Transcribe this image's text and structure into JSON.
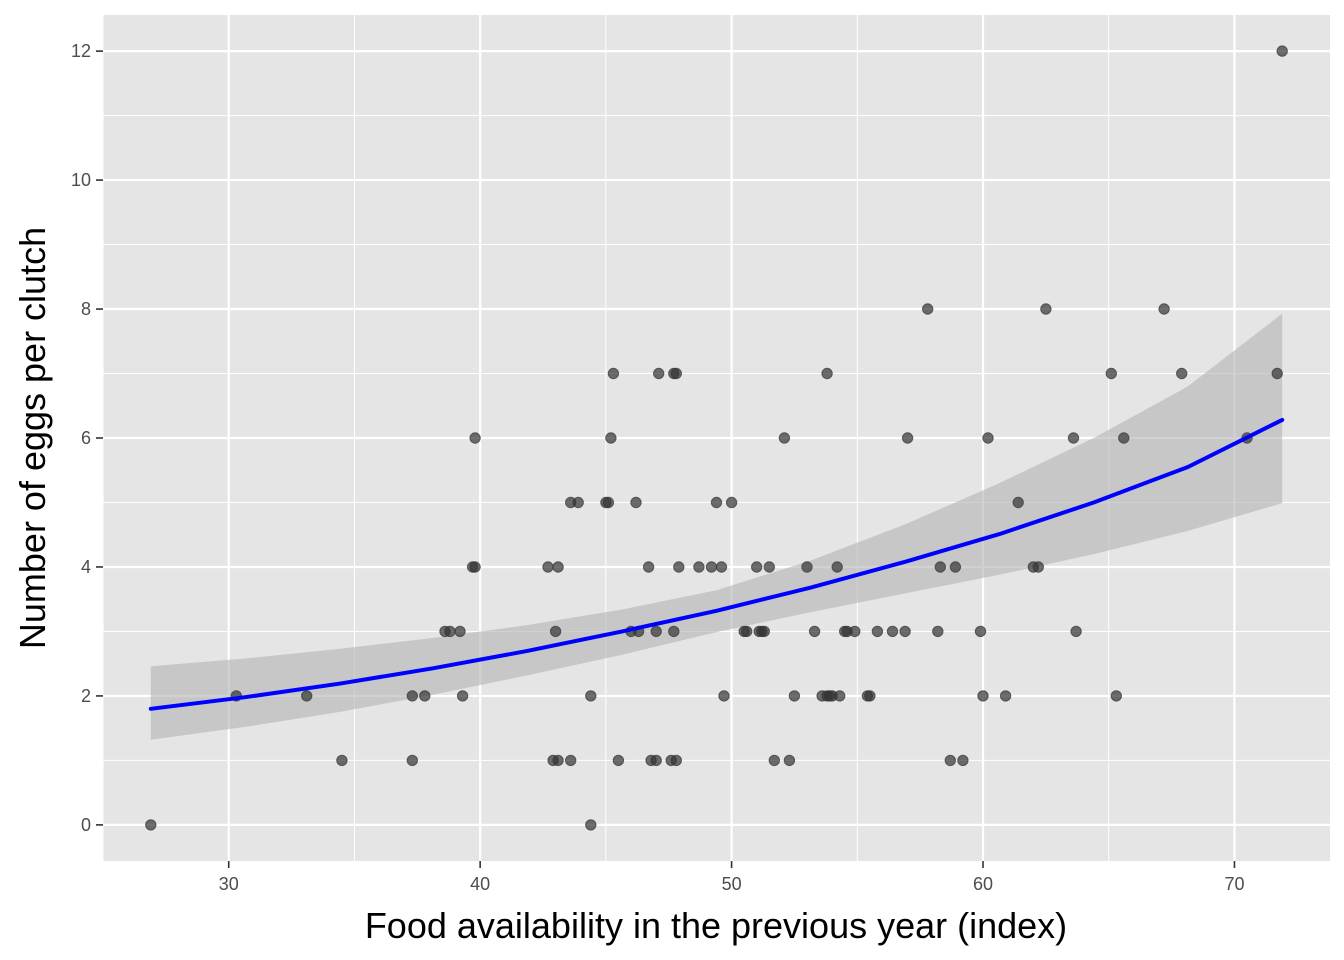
{
  "chart_data": {
    "type": "scatter",
    "title": "",
    "xlabel": "Food availability in the previous year (index)",
    "ylabel": "Number of eggs per clutch",
    "xlim": [
      25,
      73.8
    ],
    "ylim": [
      -0.56,
      12.56
    ],
    "x_ticks": [
      30,
      40,
      50,
      60,
      70
    ],
    "y_ticks": [
      0,
      2,
      4,
      6,
      8,
      10,
      12
    ],
    "x_tick_labels": [
      "30",
      "40",
      "50",
      "60",
      "70"
    ],
    "y_tick_labels": [
      "0",
      "2",
      "4",
      "6",
      "8",
      "10",
      "12"
    ],
    "grid": true,
    "legend": "none",
    "colors": {
      "panel": "#e5e5e5",
      "grid": "#ffffff",
      "points": "#333333",
      "fit_line": "#0000ff",
      "ribbon": "#b3b3b3"
    },
    "points": [
      [
        26.9,
        0
      ],
      [
        30.3,
        2
      ],
      [
        33.1,
        2
      ],
      [
        34.5,
        1
      ],
      [
        37.3,
        1
      ],
      [
        37.3,
        2
      ],
      [
        37.8,
        2
      ],
      [
        38.6,
        3
      ],
      [
        38.8,
        3
      ],
      [
        39.2,
        3
      ],
      [
        39.3,
        2
      ],
      [
        39.7,
        4
      ],
      [
        39.8,
        4
      ],
      [
        39.8,
        6
      ],
      [
        42.7,
        4
      ],
      [
        42.9,
        1
      ],
      [
        43.0,
        3
      ],
      [
        43.1,
        1
      ],
      [
        43.1,
        4
      ],
      [
        43.6,
        1
      ],
      [
        43.6,
        5
      ],
      [
        43.9,
        5
      ],
      [
        44.4,
        2
      ],
      [
        44.4,
        0
      ],
      [
        45.0,
        5
      ],
      [
        45.1,
        5
      ],
      [
        45.2,
        6
      ],
      [
        45.3,
        7
      ],
      [
        45.5,
        1
      ],
      [
        46.0,
        3
      ],
      [
        46.2,
        5
      ],
      [
        46.3,
        3
      ],
      [
        46.7,
        4
      ],
      [
        46.8,
        1
      ],
      [
        47.0,
        1
      ],
      [
        47.0,
        3
      ],
      [
        47.1,
        7
      ],
      [
        47.6,
        1
      ],
      [
        47.7,
        3
      ],
      [
        47.7,
        7
      ],
      [
        47.8,
        7
      ],
      [
        47.8,
        1
      ],
      [
        47.9,
        4
      ],
      [
        48.7,
        4
      ],
      [
        49.2,
        4
      ],
      [
        49.4,
        5
      ],
      [
        49.6,
        4
      ],
      [
        49.7,
        2
      ],
      [
        50.0,
        5
      ],
      [
        50.5,
        3
      ],
      [
        50.6,
        3
      ],
      [
        51.0,
        4
      ],
      [
        51.1,
        3
      ],
      [
        51.2,
        3
      ],
      [
        51.3,
        3
      ],
      [
        51.5,
        4
      ],
      [
        51.7,
        1
      ],
      [
        52.1,
        6
      ],
      [
        52.3,
        1
      ],
      [
        52.5,
        2
      ],
      [
        53.0,
        4
      ],
      [
        53.3,
        3
      ],
      [
        53.6,
        2
      ],
      [
        53.8,
        7
      ],
      [
        53.8,
        2
      ],
      [
        53.9,
        2
      ],
      [
        54.0,
        2
      ],
      [
        54.2,
        4
      ],
      [
        54.3,
        2
      ],
      [
        54.5,
        3
      ],
      [
        54.6,
        3
      ],
      [
        54.9,
        3
      ],
      [
        55.4,
        2
      ],
      [
        55.5,
        2
      ],
      [
        55.8,
        3
      ],
      [
        56.4,
        3
      ],
      [
        56.9,
        3
      ],
      [
        57.0,
        6
      ],
      [
        57.8,
        8
      ],
      [
        58.2,
        3
      ],
      [
        58.3,
        4
      ],
      [
        58.7,
        1
      ],
      [
        58.9,
        4
      ],
      [
        59.2,
        1
      ],
      [
        59.9,
        3
      ],
      [
        60.0,
        2
      ],
      [
        60.2,
        6
      ],
      [
        60.9,
        2
      ],
      [
        61.4,
        5
      ],
      [
        62.0,
        4
      ],
      [
        62.2,
        4
      ],
      [
        62.5,
        8
      ],
      [
        63.6,
        6
      ],
      [
        63.7,
        3
      ],
      [
        65.1,
        7
      ],
      [
        65.3,
        2
      ],
      [
        65.6,
        6
      ],
      [
        67.2,
        8
      ],
      [
        67.9,
        7
      ],
      [
        70.5,
        6
      ],
      [
        71.7,
        7
      ],
      [
        71.9,
        12
      ]
    ],
    "fit": {
      "method": "poisson glm",
      "x": [
        26.9,
        30.65,
        34.4,
        38.15,
        41.9,
        45.65,
        49.4,
        53.15,
        56.9,
        60.65,
        64.4,
        68.15,
        71.9
      ],
      "y": [
        1.8,
        1.98,
        2.19,
        2.43,
        2.7,
        3.0,
        3.32,
        3.68,
        4.08,
        4.51,
        5.0,
        5.55,
        6.28
      ],
      "lower": [
        1.32,
        1.52,
        1.75,
        2.02,
        2.32,
        2.64,
        2.99,
        3.3,
        3.59,
        3.88,
        4.2,
        4.56,
        4.99
      ],
      "upper": [
        2.46,
        2.58,
        2.73,
        2.9,
        3.1,
        3.34,
        3.64,
        4.1,
        4.66,
        5.3,
        6.0,
        6.8,
        7.93
      ]
    }
  }
}
